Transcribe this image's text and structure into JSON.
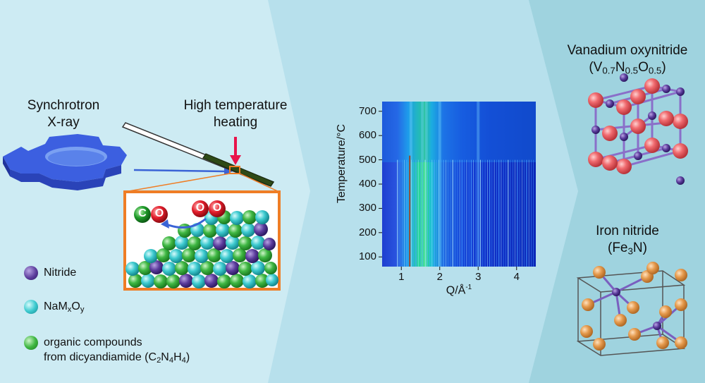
{
  "colors": {
    "panel1": "#cdebf3",
    "panel2": "#b7e0ec",
    "panel3": "#9fd3df",
    "nitride": "#5b3c9c",
    "oxide": "#3ecbd0",
    "organic": "#3fb743",
    "heater_arrow": "#e8134a",
    "zoom_box": "#ef7d25",
    "vanadium_red": "#ef5a5f",
    "iron_orange": "#e59a4d"
  },
  "panel1": {
    "source_label_line1": "Synchrotron",
    "source_label_line2": "X-ray",
    "heating_label_line1": "High temperature",
    "heating_label_line2": "heating",
    "molecule_co": [
      "C",
      "O"
    ],
    "molecule_oo": [
      "O",
      "O"
    ],
    "legend": [
      {
        "label": "Nitride",
        "color_key": "nitride",
        "icon": "purple-sphere-icon"
      },
      {
        "label_main": "NaM",
        "sub1": "x",
        "mid": "O",
        "sub2": "y",
        "color_key": "oxide",
        "icon": "cyan-sphere-icon"
      },
      {
        "line1": "organic compounds",
        "line2_main": "from dicyandiamide (C",
        "s1": "2",
        "n": "N",
        "s2": "4",
        "h": "H",
        "s3": "4",
        "close": ")",
        "color_key": "organic",
        "icon": "green-sphere-icon"
      }
    ]
  },
  "panel2": {
    "y_label": "Temperature/°C",
    "x_label": "Q/Å",
    "x_label_sup": "-1",
    "y_ticks": [
      "100",
      "200",
      "300",
      "400",
      "500",
      "600",
      "700"
    ],
    "x_ticks": [
      "1",
      "2",
      "3",
      "4"
    ]
  },
  "chart_data": {
    "type": "heatmap",
    "xlabel": "Q/Å-1",
    "ylabel": "Temperature/°C",
    "xlim": [
      0.5,
      4.5
    ],
    "ylim": [
      60,
      740
    ],
    "x_ticks": [
      1,
      2,
      3,
      4
    ],
    "y_ticks": [
      100,
      200,
      300,
      400,
      500,
      600,
      700
    ],
    "bright_bands_Q": [
      1.25,
      1.55,
      1.65,
      2.0,
      3.0
    ],
    "transition_temperature": 500
  },
  "panel3": {
    "vanadium_title": "Vanadium oxynitride",
    "vanadium_formula": [
      "V",
      "0.7",
      "N",
      "0.5",
      "O",
      "0.5"
    ],
    "iron_title": "Iron nitride",
    "iron_formula": [
      "Fe",
      "3",
      "N"
    ]
  }
}
